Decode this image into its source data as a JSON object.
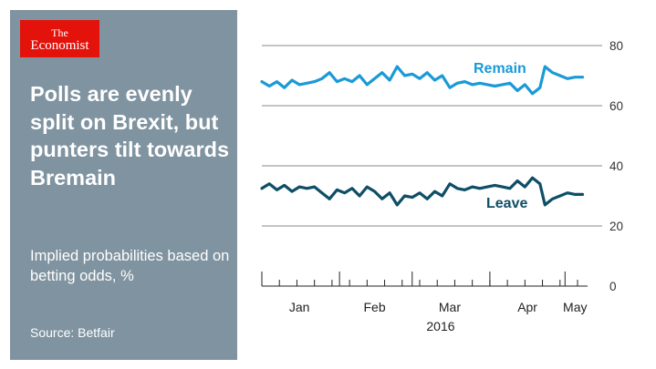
{
  "brand": {
    "line1": "The",
    "line2": "Economist"
  },
  "headline": "Polls are evenly split on Brexit, but punters tilt towards Bremain",
  "subtitle": "Implied probabilities based on betting odds, %",
  "source": "Source: Betfair",
  "colors": {
    "panel": "#7f93a0",
    "logo": "#e3120b",
    "remain": "#1a9ad6",
    "leave": "#0e4e66",
    "grid": "#888888"
  },
  "chart_data": {
    "type": "line",
    "title": "Polls are evenly split on Brexit, but punters tilt towards Bremain",
    "subtitle": "Implied probabilities based on betting odds, %",
    "xlabel": "2016",
    "ylabel": "",
    "ylim": [
      0,
      80
    ],
    "yticks": [
      0,
      20,
      40,
      60,
      80
    ],
    "grid": true,
    "x_domain": [
      "2016-01-01",
      "2016-05-10"
    ],
    "month_ticks": [
      "2016-01-01",
      "2016-02-01",
      "2016-03-01",
      "2016-04-01",
      "2016-05-01"
    ],
    "month_labels": [
      {
        "label": "Jan",
        "date": "2016-01-16"
      },
      {
        "label": "Feb",
        "date": "2016-02-15"
      },
      {
        "label": "Mar",
        "date": "2016-03-16"
      },
      {
        "label": "Apr",
        "date": "2016-04-16"
      },
      {
        "label": "May",
        "date": "2016-05-05"
      }
    ],
    "year_label": "2016",
    "series": [
      {
        "name": "Remain",
        "dates": [
          "2016-01-01",
          "2016-01-04",
          "2016-01-07",
          "2016-01-10",
          "2016-01-13",
          "2016-01-16",
          "2016-01-19",
          "2016-01-22",
          "2016-01-25",
          "2016-01-28",
          "2016-01-31",
          "2016-02-03",
          "2016-02-06",
          "2016-02-09",
          "2016-02-12",
          "2016-02-15",
          "2016-02-18",
          "2016-02-21",
          "2016-02-24",
          "2016-02-27",
          "2016-03-01",
          "2016-03-04",
          "2016-03-07",
          "2016-03-10",
          "2016-03-13",
          "2016-03-16",
          "2016-03-19",
          "2016-03-22",
          "2016-03-25",
          "2016-03-28",
          "2016-03-31",
          "2016-04-03",
          "2016-04-06",
          "2016-04-09",
          "2016-04-12",
          "2016-04-15",
          "2016-04-18",
          "2016-04-21",
          "2016-04-23",
          "2016-04-26",
          "2016-04-29",
          "2016-05-02",
          "2016-05-05",
          "2016-05-08"
        ],
        "values": [
          68,
          66.5,
          68,
          66,
          68.5,
          67,
          67.5,
          68,
          69,
          71,
          68,
          69,
          68,
          70,
          67,
          69,
          71,
          68.5,
          73,
          70,
          70.5,
          69,
          71,
          68.5,
          70,
          66,
          67.5,
          68,
          67,
          67.5,
          67,
          66.5,
          67,
          67.5,
          65,
          67,
          64,
          66,
          73,
          71,
          70,
          69,
          69.5,
          69.5
        ]
      },
      {
        "name": "Leave",
        "dates": [
          "2016-01-01",
          "2016-01-04",
          "2016-01-07",
          "2016-01-10",
          "2016-01-13",
          "2016-01-16",
          "2016-01-19",
          "2016-01-22",
          "2016-01-25",
          "2016-01-28",
          "2016-01-31",
          "2016-02-03",
          "2016-02-06",
          "2016-02-09",
          "2016-02-12",
          "2016-02-15",
          "2016-02-18",
          "2016-02-21",
          "2016-02-24",
          "2016-02-27",
          "2016-03-01",
          "2016-03-04",
          "2016-03-07",
          "2016-03-10",
          "2016-03-13",
          "2016-03-16",
          "2016-03-19",
          "2016-03-22",
          "2016-03-25",
          "2016-03-28",
          "2016-03-31",
          "2016-04-03",
          "2016-04-06",
          "2016-04-09",
          "2016-04-12",
          "2016-04-15",
          "2016-04-18",
          "2016-04-21",
          "2016-04-23",
          "2016-04-26",
          "2016-04-29",
          "2016-05-02",
          "2016-05-05",
          "2016-05-08"
        ],
        "values": [
          32.5,
          34,
          32,
          33.5,
          31.5,
          33,
          32.5,
          33,
          31,
          29,
          32,
          31,
          32.5,
          30,
          33,
          31.5,
          29,
          31,
          27,
          30,
          29.5,
          31,
          29,
          31.5,
          30,
          34,
          32.5,
          32,
          33,
          32.5,
          33,
          33.5,
          33,
          32.5,
          35,
          33,
          36,
          34,
          27,
          29,
          30,
          31,
          30.5,
          30.5
        ]
      }
    ]
  }
}
